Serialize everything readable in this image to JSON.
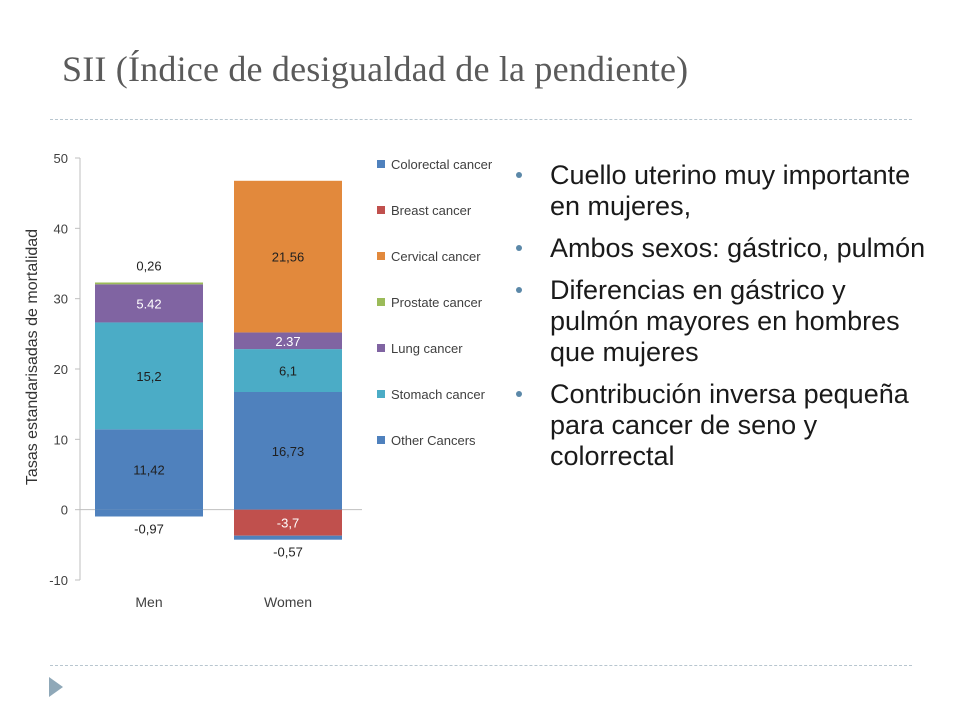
{
  "slide": {
    "title": "SII (Índice de desigualdad de la pendiente)",
    "bullets": [
      "Cuello uterino muy importante en mujeres,",
      "Ambos sexos: gástrico, pulmón",
      "Diferencias en gástrico y pulmón mayores en hombres que mujeres",
      "Contribución inversa pequeña para cancer de seno y colorrectal"
    ],
    "colors": {
      "bullet": "#5b88a8",
      "divider": "#b8c6cf",
      "title": "#5a5a5a"
    }
  },
  "chart_data": {
    "type": "bar",
    "stacked": true,
    "categories": [
      "Men",
      "Women"
    ],
    "ylabel": "Tasas estandarisadas de mortalidad",
    "ylim": [
      -10,
      50
    ],
    "yticks": [
      -10,
      0,
      10,
      20,
      30,
      40,
      50
    ],
    "legend_position": "right",
    "series": [
      {
        "name": "Colorectal cancer",
        "color": "#4f81bd",
        "values": [
          -0.97,
          -0.57
        ],
        "labels": [
          "-0,97",
          "-0,57"
        ]
      },
      {
        "name": "Breast cancer",
        "color": "#c0504d",
        "values": [
          0,
          -3.7
        ],
        "labels": [
          "",
          "-3,7"
        ]
      },
      {
        "name": "Cervical cancer",
        "color": "#e2893c",
        "values": [
          0,
          21.56
        ],
        "labels": [
          "",
          "21,56"
        ]
      },
      {
        "name": "Prostate cancer",
        "color": "#9bbb59",
        "values": [
          0.26,
          0
        ],
        "labels": [
          "0,26",
          ""
        ]
      },
      {
        "name": "Lung cancer",
        "color": "#8064a2",
        "values": [
          5.42,
          2.37
        ],
        "labels": [
          "5.42",
          "2.37"
        ]
      },
      {
        "name": "Stomach cancer",
        "color": "#4bacc6",
        "values": [
          15.2,
          6.1
        ],
        "labels": [
          "15,2",
          "6,1"
        ]
      },
      {
        "name": "Other Cancers",
        "color": "#4f81bd",
        "values": [
          11.42,
          16.73
        ],
        "labels": [
          "11,42",
          "16,73"
        ]
      }
    ]
  }
}
